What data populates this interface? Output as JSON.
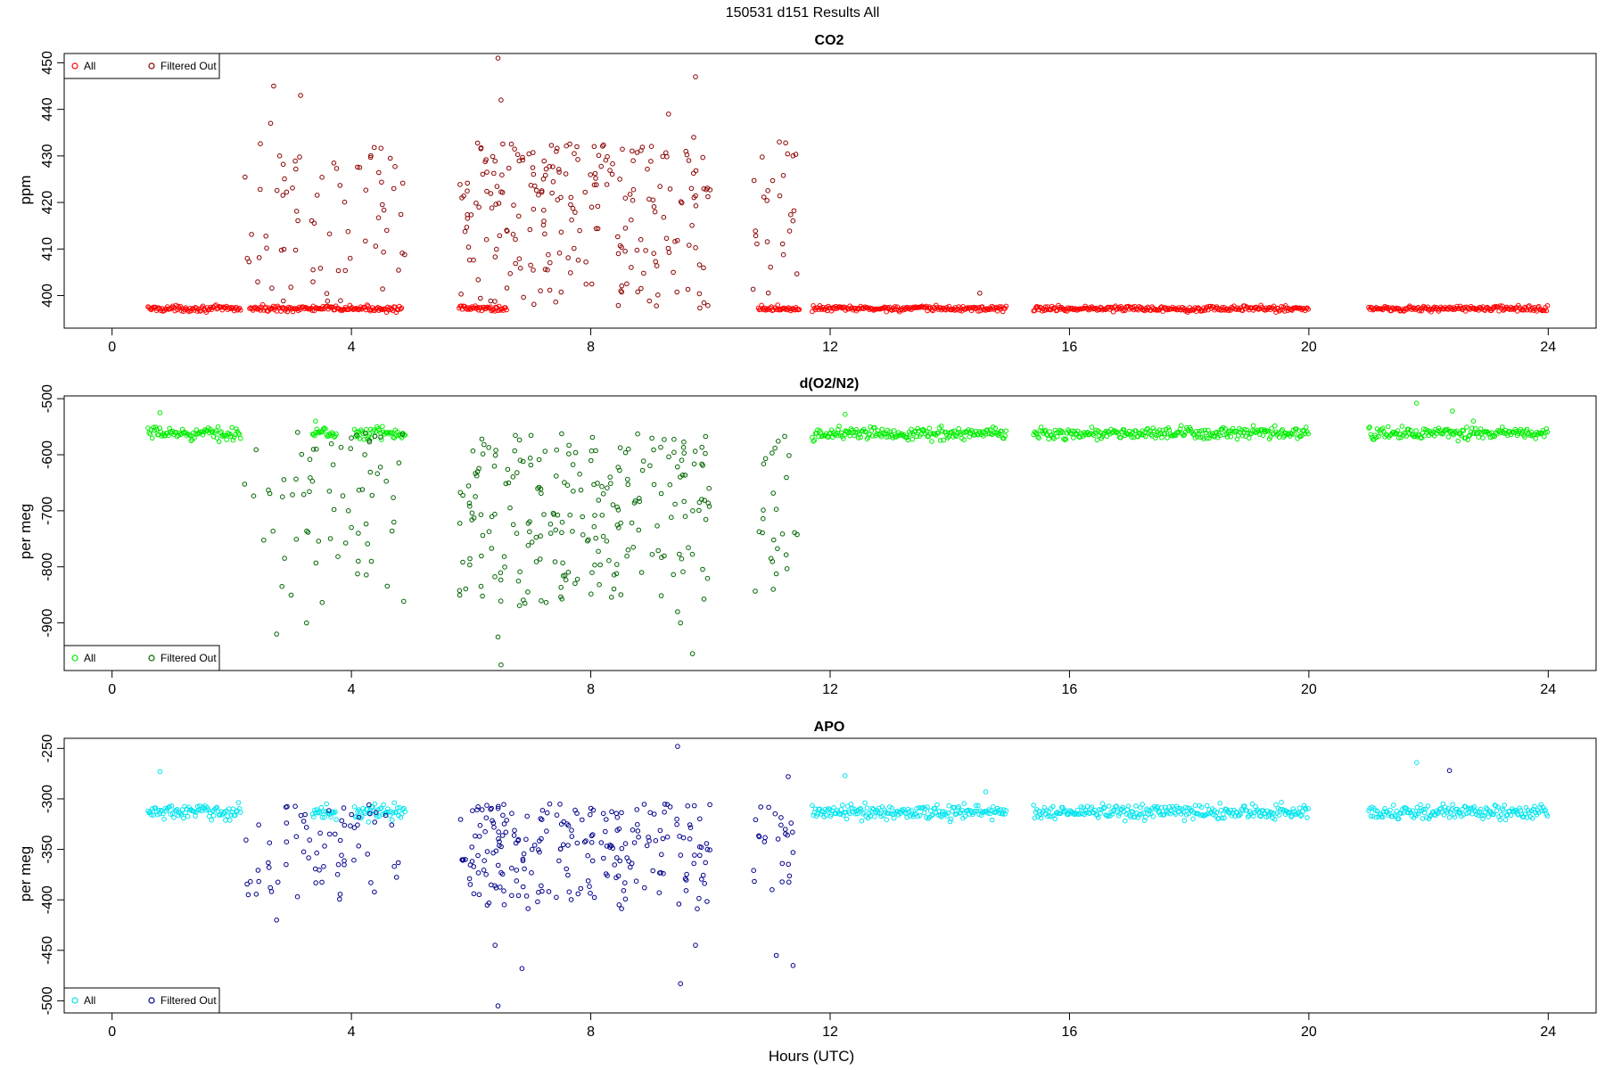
{
  "figure": {
    "title": "150531   d151   Results All",
    "xlabel": "Hours (UTC)"
  },
  "chart_data": [
    {
      "type": "scatter",
      "title": "CO2",
      "ylabel": "ppm",
      "xlim": [
        -0.8,
        24.8
      ],
      "ylim": [
        393,
        452
      ],
      "x_ticks": [
        0,
        4,
        8,
        12,
        16,
        20,
        24
      ],
      "y_ticks": [
        400,
        410,
        420,
        430,
        440,
        450
      ],
      "legend_position": "top-left",
      "colors": {
        "all": "#ff0000",
        "filtered": "#8b0000"
      },
      "series": [
        {
          "name": "All",
          "role": "all",
          "segments": [
            [
              0.6,
              2.15
            ],
            [
              2.3,
              4.85
            ],
            [
              5.8,
              6.6
            ],
            [
              10.8,
              11.5
            ],
            [
              11.7,
              14.95
            ],
            [
              15.4,
              20.0
            ],
            [
              21.0,
              24.0
            ]
          ],
          "base": 397.2,
          "jitter": 0.5
        },
        {
          "name": "Filtered Out",
          "role": "filtered",
          "segments": [
            [
              2.2,
              4.9
            ],
            [
              5.8,
              10.0
            ],
            [
              10.7,
              11.5
            ]
          ],
          "range": [
            397,
            433
          ],
          "counts": [
            70,
            230,
            25
          ],
          "points": [
            [
              6.45,
              451
            ],
            [
              9.75,
              447
            ],
            [
              2.7,
              445
            ],
            [
              3.15,
              443
            ],
            [
              9.3,
              439
            ],
            [
              2.65,
              437
            ],
            [
              6.5,
              442
            ],
            [
              11.15,
              433
            ],
            [
              9.72,
              434
            ],
            [
              2.8,
              430
            ],
            [
              4.65,
              429.5
            ],
            [
              11.38,
              430
            ],
            [
              14.5,
              400.5
            ]
          ]
        }
      ]
    },
    {
      "type": "scatter",
      "title": "d(O2/N2)",
      "ylabel": "per meg",
      "xlim": [
        -0.8,
        24.8
      ],
      "ylim": [
        -985,
        -495
      ],
      "x_ticks": [
        0,
        4,
        8,
        12,
        16,
        20,
        24
      ],
      "y_ticks": [
        -500,
        -600,
        -700,
        -800,
        -900
      ],
      "legend_position": "bottom-left",
      "colors": {
        "all": "#00ee00",
        "filtered": "#006400"
      },
      "series": [
        {
          "name": "All",
          "role": "all",
          "segments": [
            [
              0.6,
              2.15
            ],
            [
              3.35,
              3.75
            ],
            [
              4.05,
              4.9
            ],
            [
              11.7,
              14.95
            ],
            [
              15.4,
              20.0
            ],
            [
              21.0,
              24.0
            ]
          ],
          "base": -562,
          "jitter": 9,
          "points": [
            [
              0.8,
              -525
            ],
            [
              3.4,
              -540
            ],
            [
              12.25,
              -528
            ],
            [
              21.8,
              -508
            ],
            [
              22.4,
              -522
            ],
            [
              22.75,
              -540
            ]
          ]
        },
        {
          "name": "Filtered Out",
          "role": "filtered",
          "segments": [
            [
              2.2,
              4.9
            ],
            [
              5.8,
              10.0
            ],
            [
              10.7,
              11.5
            ]
          ],
          "range": [
            -870,
            -560
          ],
          "counts": [
            70,
            230,
            25
          ],
          "points": [
            [
              6.5,
              -975
            ],
            [
              9.7,
              -955
            ],
            [
              6.45,
              -925
            ],
            [
              2.75,
              -920
            ],
            [
              3.25,
              -900
            ],
            [
              9.45,
              -880
            ],
            [
              9.5,
              -900
            ],
            [
              11.05,
              -840
            ],
            [
              6.9,
              -865
            ]
          ]
        }
      ]
    },
    {
      "type": "scatter",
      "title": "APO",
      "ylabel": "per meg",
      "xlim": [
        -0.8,
        24.8
      ],
      "ylim": [
        -512,
        -240
      ],
      "x_ticks": [
        0,
        4,
        8,
        12,
        16,
        20,
        24
      ],
      "y_ticks": [
        -250,
        -300,
        -350,
        -400,
        -450,
        -500
      ],
      "legend_position": "bottom-left",
      "colors": {
        "all": "#00e5ee",
        "filtered": "#00008b"
      },
      "series": [
        {
          "name": "All",
          "role": "all",
          "segments": [
            [
              0.6,
              2.15
            ],
            [
              3.35,
              3.75
            ],
            [
              4.05,
              4.9
            ],
            [
              11.7,
              14.95
            ],
            [
              15.4,
              20.0
            ],
            [
              21.0,
              24.0
            ]
          ],
          "base": -313,
          "jitter": 6,
          "points": [
            [
              0.8,
              -273
            ],
            [
              12.25,
              -277
            ],
            [
              21.8,
              -264
            ],
            [
              14.6,
              -293
            ]
          ]
        },
        {
          "name": "Filtered Out",
          "role": "filtered",
          "segments": [
            [
              2.2,
              4.9
            ],
            [
              5.8,
              10.0
            ],
            [
              10.7,
              11.5
            ]
          ],
          "range": [
            -410,
            -305
          ],
          "counts": [
            70,
            230,
            25
          ],
          "points": [
            [
              6.45,
              -505
            ],
            [
              9.5,
              -483
            ],
            [
              6.85,
              -468
            ],
            [
              6.4,
              -445
            ],
            [
              9.75,
              -445
            ],
            [
              11.1,
              -455
            ],
            [
              11.38,
              -465
            ],
            [
              2.75,
              -420
            ],
            [
              9.45,
              -248
            ],
            [
              11.3,
              -278
            ],
            [
              22.35,
              -272
            ]
          ]
        }
      ]
    }
  ]
}
